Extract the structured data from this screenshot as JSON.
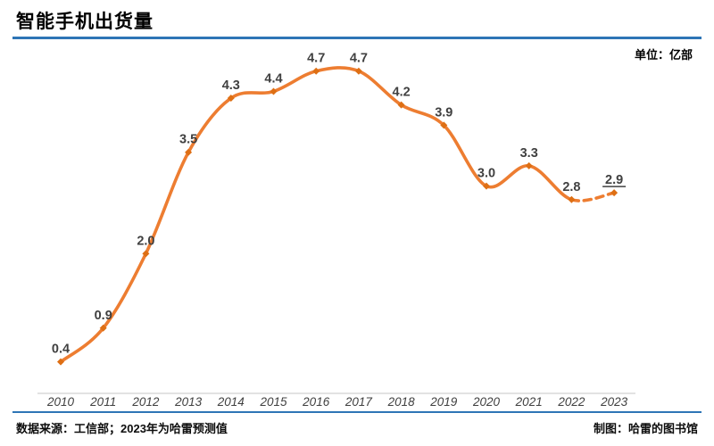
{
  "header": {
    "title": "智能手机出货量",
    "unit_label": "单位：亿部"
  },
  "footer": {
    "source": "数据来源：工信部；2023年为哈雷预测值",
    "credit": "制图：哈雷的图书馆"
  },
  "chart_data": {
    "type": "line",
    "title": "智能手机出货量",
    "unit": "亿部",
    "categories": [
      "2010",
      "2011",
      "2012",
      "2013",
      "2014",
      "2015",
      "2016",
      "2017",
      "2018",
      "2019",
      "2020",
      "2021",
      "2022",
      "2023"
    ],
    "series": [
      {
        "name": "智能手机出货量",
        "values": [
          0.4,
          0.9,
          2.0,
          3.5,
          4.3,
          4.4,
          4.7,
          4.7,
          4.2,
          3.9,
          3.0,
          3.3,
          2.8,
          2.9
        ]
      }
    ],
    "data_labels": [
      "0.4",
      "0.9",
      "2.0",
      "3.5",
      "4.3",
      "4.4",
      "4.7",
      "4.7",
      "4.2",
      "3.9",
      "3.0",
      "3.3",
      "2.8",
      "2.9"
    ],
    "forecast_index": 13,
    "forecast_style": {
      "dashed_segment": true,
      "underlined_label": true
    },
    "ylim": [
      0,
      5.2
    ],
    "grid": false,
    "legend": "none",
    "x_axis_line": true,
    "y_axis_line": false,
    "colors": {
      "line": "#ED7D31",
      "marker": "#DE6F14",
      "label": "#404040",
      "tick": "#404040",
      "axis_line": "#D9D9D9",
      "divider": "#2E75B6"
    }
  }
}
